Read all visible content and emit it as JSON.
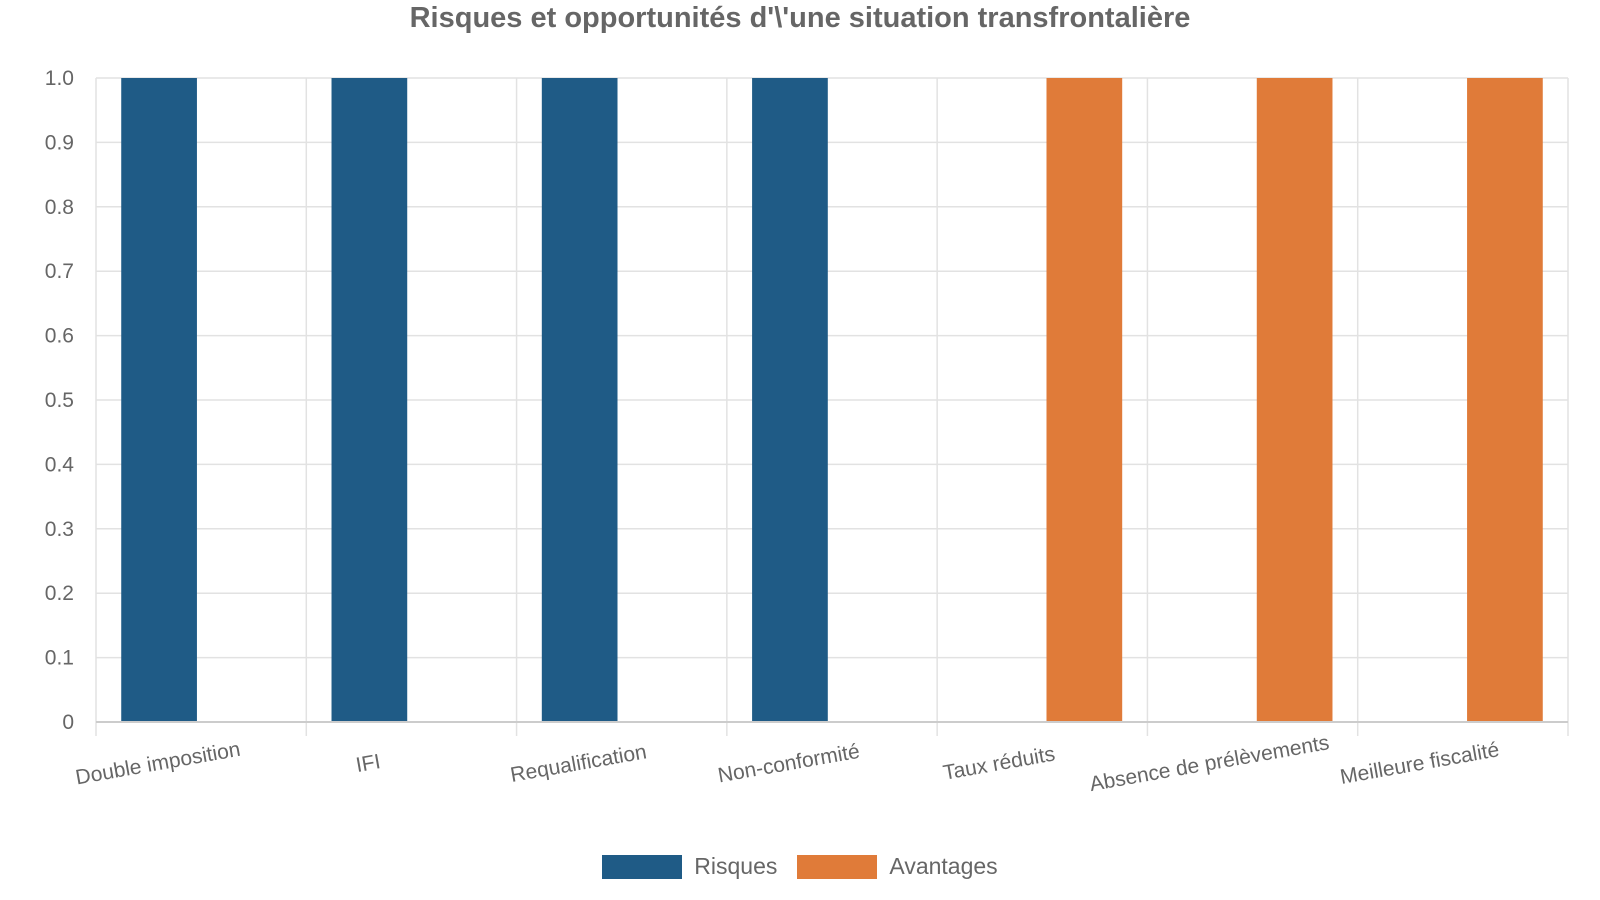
{
  "chart_data": {
    "type": "bar",
    "title": "Risques et opportunités d'\\'une situation transfrontalière",
    "categories": [
      "Double imposition",
      "IFI",
      "Requalification",
      "Non-conformité",
      "Taux réduits",
      "Absence de prélèvements",
      "Meilleure fiscalité"
    ],
    "series": [
      {
        "name": "Risques",
        "color": "#1f5b86",
        "values": [
          1,
          1,
          1,
          1,
          0,
          0,
          0
        ]
      },
      {
        "name": "Avantages",
        "color": "#e07b39",
        "values": [
          0,
          0,
          0,
          0,
          1,
          1,
          1
        ]
      }
    ],
    "y_ticks": [
      "0",
      "0.1",
      "0.2",
      "0.3",
      "0.4",
      "0.5",
      "0.6",
      "0.7",
      "0.8",
      "0.9",
      "1.0"
    ],
    "ylim": [
      0,
      1
    ],
    "grid": true,
    "legend_position": "bottom"
  }
}
